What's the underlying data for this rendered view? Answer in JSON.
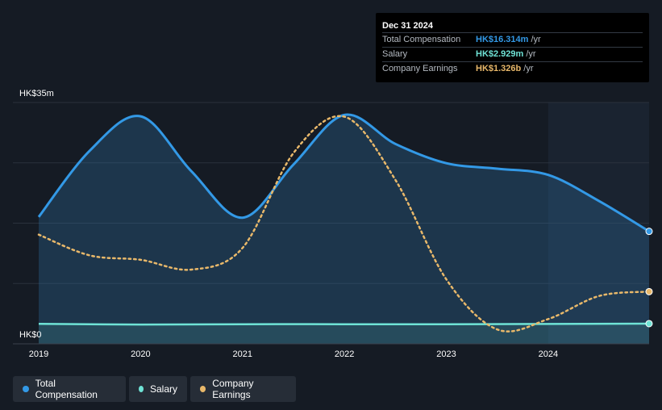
{
  "tooltip": {
    "date": "Dec 31 2024",
    "rows": [
      {
        "label": "Total Compensation",
        "value": "HK$16.314m",
        "unit": "/yr"
      },
      {
        "label": "Salary",
        "value": "HK$2.929m",
        "unit": "/yr"
      },
      {
        "label": "Company Earnings",
        "value": "HK$1.326b",
        "unit": "/yr"
      }
    ]
  },
  "legend": [
    {
      "label": "Total Compensation"
    },
    {
      "label": "Salary"
    },
    {
      "label": "Company Earnings"
    }
  ],
  "colors": {
    "total": "#3399e6",
    "salary": "#6fe3d6",
    "earnings": "#e8b86a",
    "background": "#151b24"
  },
  "chart_data": {
    "type": "line",
    "x_ticks": [
      "2019",
      "2020",
      "2021",
      "2022",
      "2023",
      "2024"
    ],
    "y_ticks": [
      "HK$35m",
      "HK$0"
    ],
    "ylim": [
      0,
      35
    ],
    "xlim": [
      2019,
      2024.99
    ],
    "forecast_start": 2024.0,
    "series": [
      {
        "name": "Total Compensation",
        "unit": "HK$m",
        "x": [
          2019.0,
          2019.5,
          2020.0,
          2020.5,
          2021.0,
          2021.5,
          2022.0,
          2022.5,
          2023.0,
          2023.5,
          2024.0,
          2024.5,
          2024.99
        ],
        "y": [
          18.4,
          28.0,
          33.0,
          25.0,
          18.3,
          26.0,
          33.2,
          29.0,
          26.2,
          25.4,
          24.5,
          20.7,
          16.314
        ]
      },
      {
        "name": "Salary",
        "unit": "HK$m",
        "x": [
          2019.0,
          2020.0,
          2021.0,
          2022.0,
          2023.0,
          2024.0,
          2024.99
        ],
        "y": [
          2.9,
          2.8,
          2.85,
          2.85,
          2.85,
          2.88,
          2.929
        ]
      },
      {
        "name": "Company Earnings",
        "unit": "HK$b",
        "x": [
          2019.0,
          2019.5,
          2020.0,
          2020.5,
          2021.0,
          2021.5,
          2022.0,
          2022.5,
          2023.0,
          2023.5,
          2024.0,
          2024.5,
          2024.99
        ],
        "y": [
          3.25,
          2.55,
          2.4,
          2.07,
          2.8,
          6.0,
          7.23,
          5.1,
          1.74,
          0.05,
          0.4,
          1.18,
          1.326
        ]
      }
    ]
  }
}
